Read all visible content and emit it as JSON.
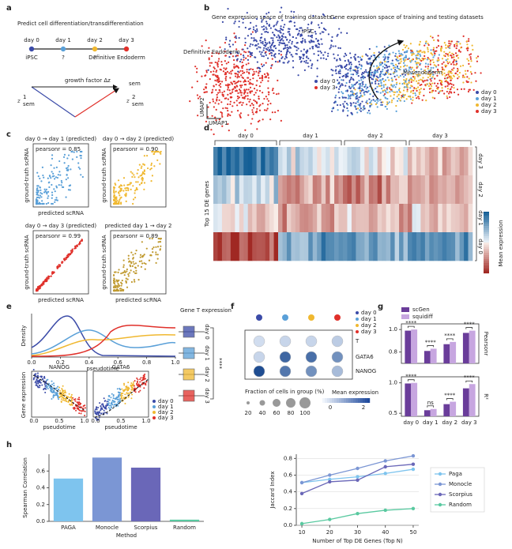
{
  "panels": {
    "labels": [
      "a",
      "b",
      "c",
      "d",
      "e",
      "f",
      "g",
      "h"
    ],
    "a": {
      "title": "Predict cell differentiation/transdifferentiation",
      "days": [
        "day 0",
        "day 1",
        "day 2",
        "day 3"
      ],
      "states": [
        "iPSC",
        "?",
        "?",
        "Definitive Endoderm"
      ],
      "growth": "growth factor Δz",
      "growth_sub": "sem",
      "z_left": {
        "base": "z",
        "sup": "1",
        "sub": "sem"
      },
      "z_right": {
        "base": "z",
        "sup": "2",
        "sub": "sem"
      }
    },
    "b": {
      "left_title": "Gene expression space of training datasets",
      "right_title": "Gene expression space of training and testing datasets",
      "ipsc": "iPSC",
      "de": "Definitive Endoderm",
      "meso": "Mesendoderm",
      "umap1": "UMAP1",
      "umap2": "UMAP2",
      "legend_left": [
        "day 0",
        "day 3"
      ],
      "legend_right": [
        "day 0",
        "day 1",
        "day 2",
        "day 3"
      ]
    },
    "c": {
      "plots": [
        {
          "title": "day 0 → day 1 (predicted)",
          "stat": "pearsonr = 0.85"
        },
        {
          "title": "day 0 → day 2 (predicted)",
          "stat": "pearsonr = 0.90"
        },
        {
          "title": "day 0 → day 3 (predicted)",
          "stat": "pearsonr = 0.99"
        },
        {
          "title": "predicted day 1 → day 2",
          "stat": "pearsonr = 0.89"
        }
      ],
      "ylabel": "ground-truth scRNA",
      "xlabel": "predicted scRNA"
    },
    "d": {
      "columns": [
        "day 0",
        "day 1",
        "day 2",
        "day 3"
      ],
      "rows": [
        "day 3",
        "day 2",
        "day 1",
        "day 0"
      ],
      "ylabel": "Top 15 DE genes",
      "colorbar": "Mean expression"
    },
    "e": {
      "ylabel_top": "Density",
      "xlabel": "pseudotime",
      "xticks": [
        "0.0",
        "0.2",
        "0.4",
        "0.6",
        "0.8",
        "1.0"
      ],
      "box_title": "Gene T expression",
      "box_days": [
        "day 0",
        "day 1",
        "day 2",
        "day 3"
      ],
      "sig": "****",
      "genes": [
        "NANOG",
        "GATA6"
      ],
      "ylabel_bottom": "Gene expression",
      "sub_xticks": [
        "0.0",
        "0.5",
        "1.0"
      ],
      "legend": [
        "day 0",
        "day 1",
        "day 2",
        "day 3"
      ]
    },
    "f": {
      "genes": [
        "T",
        "GATA6",
        "NANOG"
      ],
      "legend": [
        "day 0",
        "day 1",
        "day 2",
        "day 3"
      ],
      "fraction_title": "Fraction of cells in group (%)",
      "sizes": [
        "20",
        "40",
        "60",
        "80",
        "100"
      ],
      "mean_title": "Mean expression",
      "cbar_ticks": [
        "0",
        "2"
      ]
    }
  },
  "chart_data": [
    {
      "type": "bar",
      "ylabel": "Spearman Correlation",
      "xlabel": "Method",
      "categories": [
        "PAGA",
        "Monocle",
        "Scorpius",
        "Random"
      ],
      "values": [
        0.51,
        0.76,
        0.64,
        0.02
      ],
      "colors": [
        "#7ec4ee",
        "#7b96d4",
        "#6a67b8",
        "#59c9a0"
      ],
      "ylim": [
        0,
        0.8
      ],
      "yticks": [
        {
          "value": 0,
          "label": "0.0"
        },
        0.2,
        0.4,
        0.6
      ]
    },
    {
      "type": "line",
      "ylabel": "Jaccard Index",
      "xlabel": "Number of Top DE Genes (Top N)",
      "x": [
        10,
        20,
        30,
        40,
        50
      ],
      "xlim": [
        8,
        52
      ],
      "xticks": [
        10,
        20,
        30,
        40,
        50
      ],
      "ylim": [
        0,
        0.85
      ],
      "yticks": [
        {
          "value": 0,
          "label": "0.0"
        },
        0.2,
        0.4,
        0.6,
        0.8
      ],
      "legend": "right",
      "series": [
        {
          "name": "Paga",
          "color": "#7ec4ee",
          "values": [
            0.51,
            0.55,
            0.58,
            0.62,
            0.67
          ]
        },
        {
          "name": "Monocle",
          "color": "#7b96d4",
          "values": [
            0.51,
            0.6,
            0.68,
            0.77,
            0.83
          ]
        },
        {
          "name": "Scorpius",
          "color": "#6a67b8",
          "values": [
            0.38,
            0.52,
            0.54,
            0.7,
            0.73
          ]
        },
        {
          "name": "Random",
          "color": "#59c9a0",
          "values": [
            0.02,
            0.07,
            0.14,
            0.18,
            0.2
          ]
        }
      ]
    },
    {
      "type": "grouped_bar",
      "ylabel": "Pearsonr",
      "categories": [
        "day 0",
        "day 1",
        "day 2",
        "day 3"
      ],
      "ylim": [
        0.7,
        1.05
      ],
      "yticks": [
        0.8,
        {
          "value": 1,
          "label": "1.0"
        }
      ],
      "annotations": [
        "****",
        "****",
        "****",
        "****"
      ],
      "series": [
        {
          "name": "scGen",
          "color": "#6a3d9a",
          "values": [
            0.99,
            0.81,
            0.87,
            0.97
          ]
        },
        {
          "name": "squidiff",
          "color": "#c7a6e0",
          "values": [
            1.0,
            0.83,
            0.89,
            0.99
          ]
        }
      ]
    },
    {
      "type": "grouped_bar",
      "ylabel": "R²",
      "ylim": [
        0.45,
        1.1
      ],
      "yticks": [
        0.5,
        {
          "value": 1,
          "label": "1.0"
        }
      ],
      "annotations": [
        "****",
        "ns",
        "****",
        "****"
      ],
      "series": [
        {
          "color": "#6a3d9a",
          "values": [
            0.99,
            0.55,
            0.65,
            0.91
          ]
        },
        {
          "color": "#c7a6e0",
          "values": [
            1.0,
            0.57,
            0.69,
            0.98
          ]
        }
      ]
    }
  ]
}
